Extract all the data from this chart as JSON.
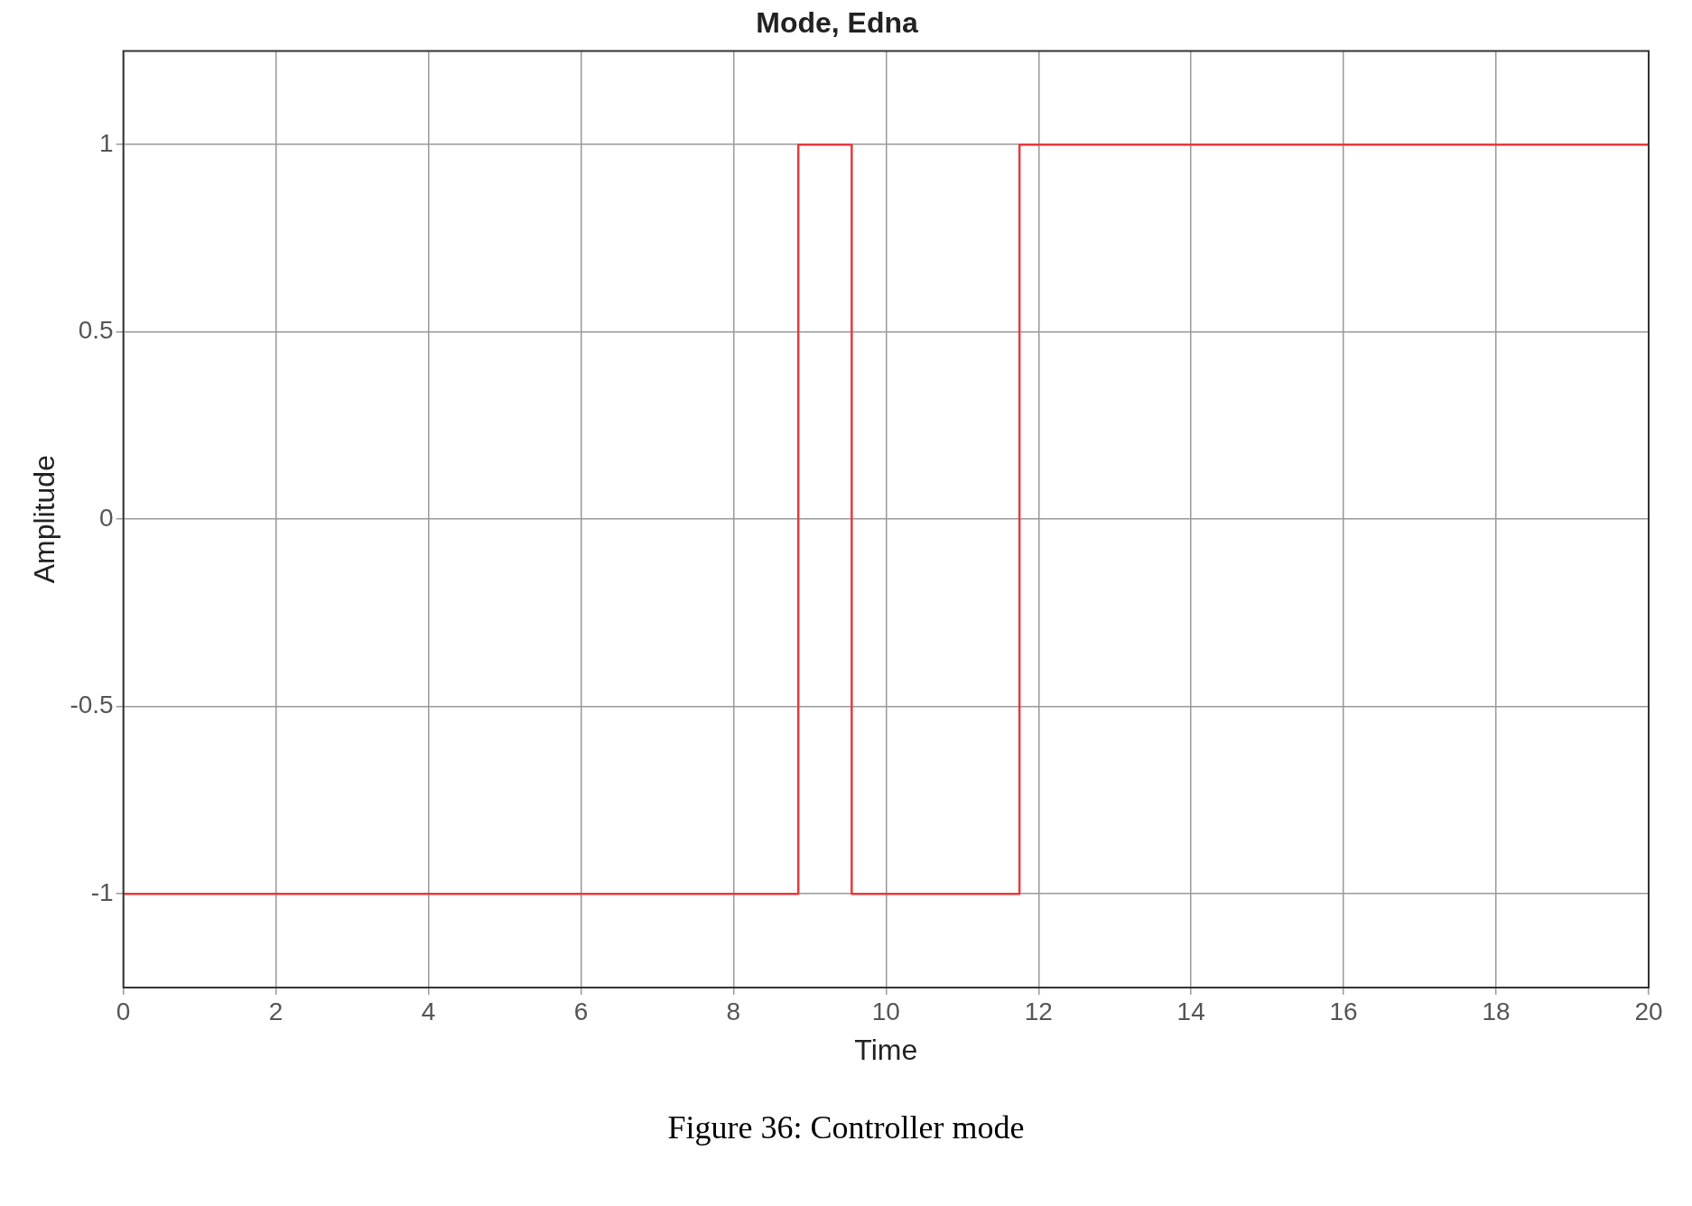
{
  "chart_data": {
    "type": "step",
    "title": "Mode, Edna",
    "xlabel": "Time",
    "ylabel": "Amplitude",
    "x": [
      0,
      8.85,
      9.55,
      11.75,
      20
    ],
    "series": [
      {
        "color": "#e8383d",
        "values": [
          -1,
          1,
          -1,
          1,
          1
        ]
      }
    ],
    "xlim": [
      0,
      20
    ],
    "xticks": [
      0,
      2,
      4,
      6,
      8,
      10,
      12,
      14,
      16,
      18,
      20
    ],
    "ylim": [
      -1.25,
      1.25
    ],
    "yticks": [
      -1,
      -0.5,
      0,
      0.5,
      1
    ],
    "grid": true,
    "legend": false,
    "annotations": [
      "Figure 36: Controller mode"
    ]
  }
}
